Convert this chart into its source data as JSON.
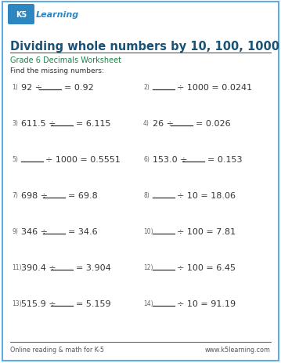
{
  "title": "Dividing whole numbers by 10, 100, 1000",
  "subtitle": "Grade 6 Decimals Worksheet",
  "instruction": "Find the missing numbers:",
  "title_color": "#1a5276",
  "subtitle_color": "#1e8449",
  "instruction_color": "#333333",
  "border_color": "#5dade2",
  "background_color": "#ffffff",
  "footer_left": "Online reading & math for K-5",
  "footer_right": "www.k5learning.com",
  "left_problems": [
    {
      "n": "1)",
      "before": "92 ÷",
      "after": "= 0.92"
    },
    {
      "n": "3)",
      "before": "611.5 ÷",
      "after": "= 6.115"
    },
    {
      "n": "5)",
      "before": "",
      "after": "÷ 1000 = 0.5551"
    },
    {
      "n": "7)",
      "before": "698 ÷",
      "after": "= 69.8"
    },
    {
      "n": "9)",
      "before": "346 ÷",
      "after": "= 34.6"
    },
    {
      "n": "11)",
      "before": "390.4 ÷",
      "after": "= 3.904"
    },
    {
      "n": "13)",
      "before": "515.9 ÷",
      "after": "= 5.159"
    }
  ],
  "right_problems": [
    {
      "n": "2)",
      "before": "",
      "after": "÷ 1000 = 0.0241"
    },
    {
      "n": "4)",
      "before": "26 ÷",
      "after": "= 0.026"
    },
    {
      "n": "6)",
      "before": "153.0 ÷",
      "after": "= 0.153"
    },
    {
      "n": "8)",
      "before": "",
      "after": "÷ 10 = 18.06"
    },
    {
      "n": "10)",
      "before": "",
      "after": "÷ 100 = 7.81"
    },
    {
      "n": "12)",
      "before": "",
      "after": "÷ 100 = 6.45"
    },
    {
      "n": "14)",
      "before": "",
      "after": "÷ 10 = 91.19"
    }
  ]
}
